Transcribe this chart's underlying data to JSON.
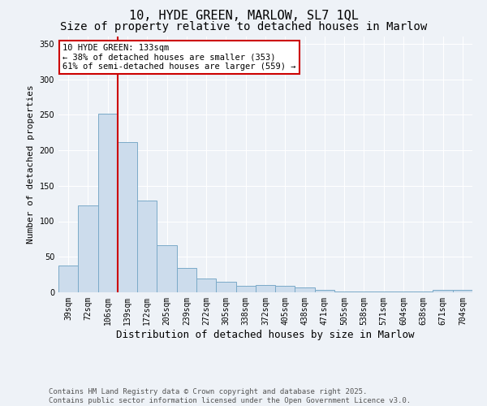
{
  "title": "10, HYDE GREEN, MARLOW, SL7 1QL",
  "subtitle": "Size of property relative to detached houses in Marlow",
  "xlabel": "Distribution of detached houses by size in Marlow",
  "ylabel": "Number of detached properties",
  "categories": [
    "39sqm",
    "72sqm",
    "106sqm",
    "139sqm",
    "172sqm",
    "205sqm",
    "239sqm",
    "272sqm",
    "305sqm",
    "338sqm",
    "372sqm",
    "405sqm",
    "438sqm",
    "471sqm",
    "505sqm",
    "538sqm",
    "571sqm",
    "604sqm",
    "638sqm",
    "671sqm",
    "704sqm"
  ],
  "values": [
    38,
    122,
    252,
    212,
    129,
    66,
    34,
    19,
    15,
    9,
    10,
    9,
    7,
    3,
    1,
    1,
    1,
    1,
    1,
    4,
    4
  ],
  "bar_color": "#ccdcec",
  "bar_edge_color": "#7aaac8",
  "red_line_x": 2.5,
  "annotation_text": "10 HYDE GREEN: 133sqm\n← 38% of detached houses are smaller (353)\n61% of semi-detached houses are larger (559) →",
  "annotation_box_color": "#ffffff",
  "annotation_box_edge_color": "#cc0000",
  "red_line_color": "#cc0000",
  "ylim": [
    0,
    360
  ],
  "yticks": [
    0,
    50,
    100,
    150,
    200,
    250,
    300,
    350
  ],
  "background_color": "#eef2f7",
  "grid_color": "#ffffff",
  "footer_text": "Contains HM Land Registry data © Crown copyright and database right 2025.\nContains public sector information licensed under the Open Government Licence v3.0.",
  "title_fontsize": 11,
  "subtitle_fontsize": 10,
  "xlabel_fontsize": 9,
  "ylabel_fontsize": 8,
  "tick_fontsize": 7,
  "annotation_fontsize": 7.5,
  "footer_fontsize": 6.5
}
